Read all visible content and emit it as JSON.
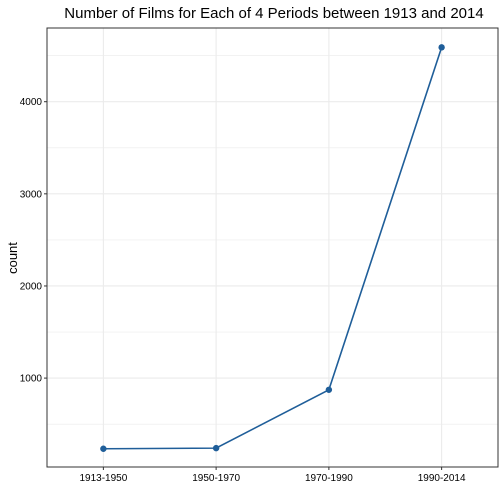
{
  "chart_data": {
    "type": "line",
    "title": "Number of Films for Each of 4 Periods between 1913 and 2014",
    "xlabel": "",
    "ylabel": "count",
    "categories": [
      "1913-1950",
      "1950-1970",
      "1970-1990",
      "1990-2014"
    ],
    "values": [
      233,
      240,
      873,
      4590
    ],
    "ylim": [
      35,
      4800
    ],
    "yticks": [
      1000,
      2000,
      3000,
      4000
    ],
    "grid": true,
    "legend": "none",
    "colors": {
      "line": "#1f5e99",
      "point": "#1f5e99",
      "grid": "#ebebeb",
      "panel_border": "#333333"
    }
  }
}
